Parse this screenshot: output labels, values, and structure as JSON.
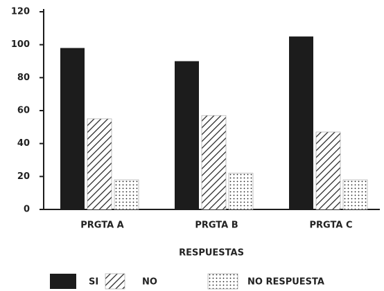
{
  "chart_data": {
    "type": "bar",
    "x_label": "RESPUESTAS",
    "categories": [
      "PRGTA A",
      "PRGTA B",
      "PRGTA C"
    ],
    "series": [
      {
        "name": "SI",
        "color": "#1c1c1c",
        "pattern": "solid",
        "values": [
          98,
          90,
          105
        ]
      },
      {
        "name": "NO",
        "color": "#1c1c1c",
        "pattern": "hatch",
        "values": [
          55,
          57,
          47
        ]
      },
      {
        "name": "NO RESPUESTA",
        "color": "#1c1c1c",
        "pattern": "dots",
        "values": [
          18,
          22,
          18
        ]
      }
    ],
    "ylim": [
      0,
      120
    ],
    "yticks": [
      0,
      20,
      40,
      60,
      80,
      100,
      120
    ],
    "grid": false
  }
}
